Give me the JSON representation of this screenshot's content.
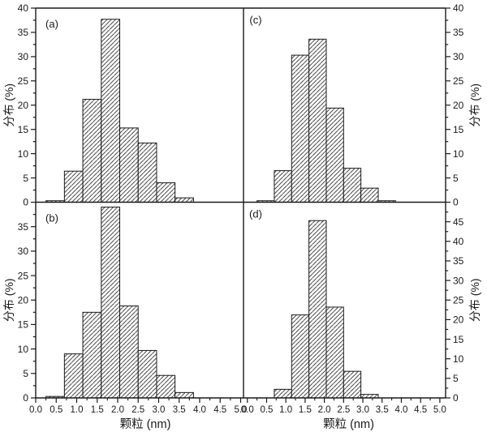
{
  "figure": {
    "background": "#ffffff",
    "ink_color": "#1a1a1a",
    "hatch_color": "#222222",
    "bar_fill": "white-with-diagonal-hatch"
  },
  "chart_data": [
    {
      "id": "a",
      "type": "bar",
      "subtype": "histogram",
      "panel_label": "(a)",
      "position": "top-left",
      "y_axis_side": "left",
      "ylabel": "分布 (%)",
      "xlabel": "颗粒 (nm)",
      "xlabel_visible": false,
      "x_tick_labels_visible": false,
      "xlim": [
        0,
        5.07
      ],
      "ylim": [
        0,
        40
      ],
      "xticks": [
        0,
        0.5,
        1,
        1.5,
        2,
        2.5,
        3,
        3.5,
        4,
        4.5,
        5
      ],
      "xtick_labels": [
        "0.0",
        "0.5",
        "1.0",
        "1.5",
        "2.0",
        "2.5",
        "3.0",
        "3.5",
        "4.0",
        "4.5",
        "5.0"
      ],
      "yticks": [
        0,
        5,
        10,
        15,
        20,
        25,
        30,
        35,
        40
      ],
      "grid": false,
      "bin_edges": [
        0.25,
        0.7,
        1.15,
        1.6,
        2.05,
        2.5,
        2.95,
        3.4,
        3.85
      ],
      "values": [
        0.3,
        6.4,
        21.2,
        37.7,
        15.3,
        12.2,
        4.0,
        0.9
      ]
    },
    {
      "id": "b",
      "type": "bar",
      "subtype": "histogram",
      "panel_label": "(b)",
      "position": "bottom-left",
      "y_axis_side": "left",
      "ylabel": "分布 (%)",
      "xlabel": "颗粒 (nm)",
      "xlabel_visible": true,
      "x_tick_labels_visible": true,
      "xlim": [
        0,
        5.07
      ],
      "ylim": [
        0,
        40
      ],
      "xticks": [
        0,
        0.5,
        1,
        1.5,
        2,
        2.5,
        3,
        3.5,
        4,
        4.5,
        5
      ],
      "xtick_labels": [
        "0.0",
        "0.5",
        "1.0",
        "1.5",
        "2.0",
        "2.5",
        "3.0",
        "3.5",
        "4.0",
        "4.5",
        "5.0"
      ],
      "yticks": [
        0,
        5,
        10,
        15,
        20,
        25,
        30,
        35
      ],
      "grid": false,
      "bin_edges": [
        0.25,
        0.7,
        1.15,
        1.6,
        2.05,
        2.5,
        2.95,
        3.4,
        3.85
      ],
      "values": [
        0.3,
        9.0,
        17.5,
        39.0,
        18.8,
        9.7,
        4.6,
        1.1
      ]
    },
    {
      "id": "c",
      "type": "bar",
      "subtype": "histogram",
      "panel_label": "(c)",
      "position": "top-right",
      "y_axis_side": "right",
      "ylabel": "分布 (%)",
      "xlabel": "颗粒 (nm)",
      "xlabel_visible": false,
      "x_tick_labels_visible": false,
      "xlim": [
        -0.1,
        5.15
      ],
      "ylim": [
        0,
        40
      ],
      "xticks": [
        0,
        0.5,
        1,
        1.5,
        2,
        2.5,
        3,
        3.5,
        4,
        4.5,
        5
      ],
      "xtick_labels": [
        "0.0",
        "0.5",
        "1.0",
        "1.5",
        "2.0",
        "2.5",
        "3.0",
        "3.5",
        "4.0",
        "4.5",
        "5.0"
      ],
      "yticks": [
        0,
        5,
        10,
        15,
        20,
        25,
        30,
        35,
        40
      ],
      "grid": false,
      "bin_edges": [
        0.25,
        0.7,
        1.15,
        1.6,
        2.05,
        2.5,
        2.95,
        3.4,
        3.85
      ],
      "values": [
        0.3,
        6.5,
        30.3,
        33.6,
        19.4,
        7.0,
        2.9,
        0.3
      ]
    },
    {
      "id": "d",
      "type": "bar",
      "subtype": "histogram",
      "panel_label": "(d)",
      "position": "bottom-right",
      "y_axis_side": "right",
      "ylabel": "分布 (%)",
      "xlabel": "颗粒 (nm)",
      "xlabel_visible": true,
      "x_tick_labels_visible": true,
      "xlim": [
        -0.1,
        5.15
      ],
      "ylim": [
        0,
        50
      ],
      "xticks": [
        0,
        0.5,
        1,
        1.5,
        2,
        2.5,
        3,
        3.5,
        4,
        4.5,
        5
      ],
      "xtick_labels": [
        "0.0",
        "0.5",
        "1.0",
        "1.5",
        "2.0",
        "2.5",
        "3.0",
        "3.5",
        "4.0",
        "4.5",
        "5.0"
      ],
      "yticks": [
        0,
        5,
        10,
        15,
        20,
        25,
        30,
        35,
        40,
        45
      ],
      "grid": false,
      "bin_edges": [
        0.7,
        1.15,
        1.6,
        2.05,
        2.5,
        2.95,
        3.4
      ],
      "values": [
        2.2,
        21.2,
        45.3,
        23.2,
        6.8,
        0.9
      ]
    }
  ]
}
